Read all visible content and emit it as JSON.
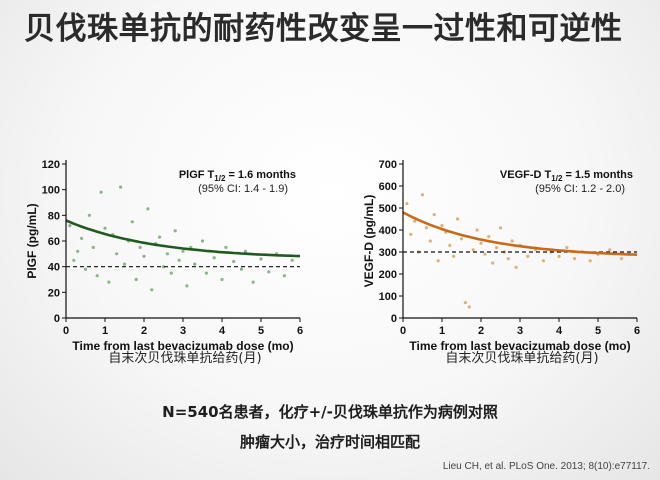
{
  "slide": {
    "title": "贝伐珠单抗的耐药性改变呈一过性和可逆性",
    "bottom_line1": "N=540名患者，化疗+/-贝伐珠单抗作为病例对照",
    "bottom_line2": "肿瘤大小，治疗时间相匹配",
    "citation": "Lieu CH, et al. PLoS One. 2013; 8(10):e77117."
  },
  "chart_data": [
    {
      "type": "scatter",
      "xlabel": "Time from last bevacizumab dose (mo)",
      "xlabel_cn": "自末次贝伐珠单抗给药(月)",
      "ylabel": "PlGF (pg/mL)",
      "xlim": [
        0,
        6
      ],
      "ylim": [
        0,
        120
      ],
      "xticks": [
        0,
        1,
        2,
        3,
        4,
        5,
        6
      ],
      "yticks": [
        0,
        20,
        40,
        60,
        80,
        100,
        120
      ],
      "annotation_name": "PlGF T",
      "annotation_sub": "1/2",
      "annotation_value": " = 1.6 months",
      "annotation_ci": "(95% CI: 1.4 - 1.9)",
      "curve_color": "#1f5a1f",
      "point_color": "#8ab58a",
      "reference_line": 40,
      "fit": {
        "type": "exp_decay",
        "start": 76,
        "plateau": 46,
        "halflife": 1.6
      },
      "points": [
        [
          0.1,
          72
        ],
        [
          0.2,
          45
        ],
        [
          0.3,
          52
        ],
        [
          0.4,
          62
        ],
        [
          0.5,
          38
        ],
        [
          0.6,
          80
        ],
        [
          0.7,
          55
        ],
        [
          0.8,
          33
        ],
        [
          0.9,
          98
        ],
        [
          1.0,
          70
        ],
        [
          1.1,
          28
        ],
        [
          1.2,
          65
        ],
        [
          1.3,
          50
        ],
        [
          1.4,
          102
        ],
        [
          1.5,
          42
        ],
        [
          1.6,
          60
        ],
        [
          1.7,
          75
        ],
        [
          1.8,
          30
        ],
        [
          1.9,
          55
        ],
        [
          2.0,
          48
        ],
        [
          2.1,
          85
        ],
        [
          2.2,
          22
        ],
        [
          2.3,
          58
        ],
        [
          2.4,
          63
        ],
        [
          2.5,
          40
        ],
        [
          2.6,
          50
        ],
        [
          2.7,
          35
        ],
        [
          2.8,
          68
        ],
        [
          2.9,
          45
        ],
        [
          3.0,
          52
        ],
        [
          3.1,
          25
        ],
        [
          3.2,
          55
        ],
        [
          3.3,
          42
        ],
        [
          3.5,
          60
        ],
        [
          3.6,
          35
        ],
        [
          3.8,
          47
        ],
        [
          4.0,
          30
        ],
        [
          4.1,
          55
        ],
        [
          4.3,
          44
        ],
        [
          4.5,
          38
        ],
        [
          4.6,
          52
        ],
        [
          4.8,
          28
        ],
        [
          5.0,
          46
        ],
        [
          5.2,
          36
        ],
        [
          5.4,
          50
        ],
        [
          5.6,
          33
        ],
        [
          5.8,
          45
        ]
      ]
    },
    {
      "type": "scatter",
      "xlabel": "Time from last bevacizumab dose (mo)",
      "xlabel_cn": "自末次贝伐珠单抗给药(月)",
      "ylabel": "VEGF-D (pg/mL)",
      "xlim": [
        0,
        6
      ],
      "ylim": [
        0,
        700
      ],
      "xticks": [
        0,
        1,
        2,
        3,
        4,
        5,
        6
      ],
      "yticks": [
        0,
        100,
        200,
        300,
        400,
        500,
        600,
        700
      ],
      "annotation_name": "VEGF-D T",
      "annotation_sub": "1/2",
      "annotation_value": " = 1.5 months",
      "annotation_ci": "(95% CI: 1.2 - 2.0)",
      "curve_color": "#c76a1a",
      "point_color": "#e0b07a",
      "reference_line": 300,
      "fit": {
        "type": "exp_decay",
        "start": 480,
        "plateau": 275,
        "halflife": 1.5
      },
      "points": [
        [
          0.1,
          520
        ],
        [
          0.2,
          380
        ],
        [
          0.3,
          440
        ],
        [
          0.4,
          300
        ],
        [
          0.5,
          560
        ],
        [
          0.6,
          410
        ],
        [
          0.7,
          350
        ],
        [
          0.8,
          470
        ],
        [
          0.9,
          260
        ],
        [
          1.0,
          420
        ],
        [
          1.1,
          390
        ],
        [
          1.2,
          330
        ],
        [
          1.3,
          280
        ],
        [
          1.4,
          450
        ],
        [
          1.5,
          360
        ],
        [
          1.6,
          70
        ],
        [
          1.7,
          50
        ],
        [
          1.8,
          310
        ],
        [
          1.9,
          400
        ],
        [
          2.0,
          340
        ],
        [
          2.1,
          290
        ],
        [
          2.2,
          370
        ],
        [
          2.3,
          250
        ],
        [
          2.4,
          320
        ],
        [
          2.5,
          410
        ],
        [
          2.6,
          300
        ],
        [
          2.7,
          270
        ],
        [
          2.8,
          350
        ],
        [
          2.9,
          230
        ],
        [
          3.0,
          330
        ],
        [
          3.2,
          280
        ],
        [
          3.4,
          310
        ],
        [
          3.6,
          260
        ],
        [
          3.8,
          300
        ],
        [
          4.0,
          280
        ],
        [
          4.2,
          320
        ],
        [
          4.4,
          270
        ],
        [
          4.6,
          300
        ],
        [
          4.8,
          260
        ],
        [
          5.0,
          290
        ],
        [
          5.3,
          310
        ],
        [
          5.6,
          270
        ],
        [
          5.8,
          290
        ]
      ]
    }
  ]
}
